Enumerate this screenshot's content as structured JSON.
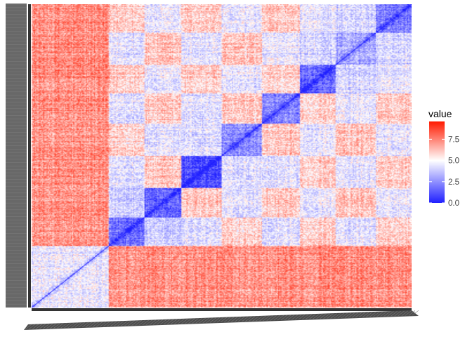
{
  "chart_data": {
    "type": "heatmap",
    "title": "",
    "xlabel": "",
    "ylabel": "",
    "x_tick_labels_note": "",
    "n_rows": 330,
    "n_cols": 330,
    "value_range": [
      0,
      9.6
    ],
    "blocks": [
      {
        "from": 0,
        "to": 67,
        "self_value": 4.6
      },
      {
        "from": 67,
        "to": 98,
        "self_value": 1.9
      },
      {
        "from": 98,
        "to": 130,
        "self_value": 1.6
      },
      {
        "from": 130,
        "to": 165,
        "self_value": 1.0
      },
      {
        "from": 165,
        "to": 200,
        "self_value": 2.4
      },
      {
        "from": 200,
        "to": 233,
        "self_value": 2.2
      },
      {
        "from": 233,
        "to": 264,
        "self_value": 1.4
      },
      {
        "from": 264,
        "to": 299,
        "self_value": 3.0
      },
      {
        "from": 299,
        "to": 330,
        "self_value": 2.0
      }
    ],
    "legend": {
      "title": "value",
      "ticks": [
        0.0,
        2.5,
        5.0,
        7.5
      ],
      "tick_labels": [
        "0.0",
        "2.5",
        "5.0",
        "7.5"
      ],
      "colors": {
        "low": "#2020ff",
        "mid": "#ffffff",
        "high": "#ff1a00"
      },
      "midpoint": 5.0,
      "placement": "right"
    },
    "diagonal_value": 0.0
  },
  "colors": {
    "axis_line": "#333333",
    "tick_text": "#4d4d4d",
    "panel_bg": "#ffffff"
  }
}
